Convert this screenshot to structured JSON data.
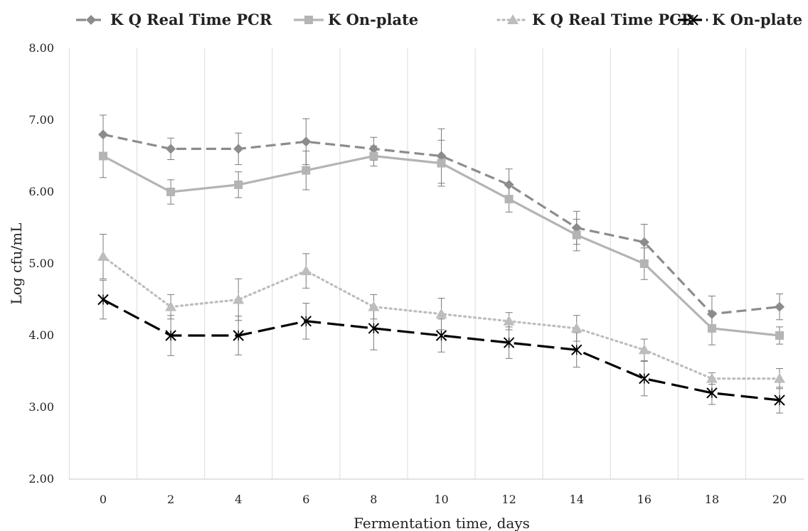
{
  "chart_data": {
    "type": "line",
    "xlabel": "Fermentation time, days",
    "ylabel": "Log cfu/mL",
    "ylim": [
      2,
      8
    ],
    "ytick_labels": [
      "2.00",
      "3.00",
      "4.00",
      "5.00",
      "6.00",
      "7.00",
      "8.00"
    ],
    "x": [
      0,
      2,
      4,
      6,
      8,
      10,
      12,
      14,
      16,
      18,
      20
    ],
    "legend_position": "top",
    "grid": "vertical",
    "series": [
      {
        "name": "K Q Real Time PCR",
        "values": [
          6.8,
          6.6,
          6.6,
          6.7,
          6.6,
          6.5,
          6.1,
          5.5,
          5.3,
          4.3,
          4.4
        ],
        "errors": [
          0.27,
          0.15,
          0.22,
          0.32,
          0.16,
          0.38,
          0.22,
          0.23,
          0.25,
          0.25,
          0.18
        ],
        "color": "#8c8c8c",
        "marker": "diamond",
        "line_style": "dashed"
      },
      {
        "name": "K On-plate",
        "values": [
          6.5,
          6.0,
          6.1,
          6.3,
          6.5,
          6.4,
          5.9,
          5.4,
          5.0,
          4.1,
          4.0
        ],
        "errors": [
          0.3,
          0.17,
          0.18,
          0.27,
          0.14,
          0.32,
          0.18,
          0.22,
          0.22,
          0.23,
          0.12
        ],
        "color": "#b4b4b4",
        "marker": "square",
        "line_style": "solid"
      },
      {
        "name": "K Q Real Time PCR",
        "values": [
          5.1,
          4.4,
          4.5,
          4.9,
          4.4,
          4.3,
          4.2,
          4.1,
          3.8,
          3.4,
          3.4
        ],
        "errors": [
          0.31,
          0.17,
          0.29,
          0.24,
          0.17,
          0.22,
          0.12,
          0.18,
          0.15,
          0.08,
          0.14
        ],
        "color": "#bdbdbd",
        "marker": "triangle",
        "line_style": "dotted"
      },
      {
        "name": "K On-plate",
        "values": [
          4.5,
          4.0,
          4.0,
          4.2,
          4.1,
          4.0,
          3.9,
          3.8,
          3.4,
          3.2,
          3.1
        ],
        "errors": [
          0.27,
          0.28,
          0.27,
          0.25,
          0.3,
          0.23,
          0.22,
          0.24,
          0.24,
          0.16,
          0.18
        ],
        "color": "#000000",
        "marker": "asterisk",
        "line_style": "longdash"
      }
    ]
  }
}
